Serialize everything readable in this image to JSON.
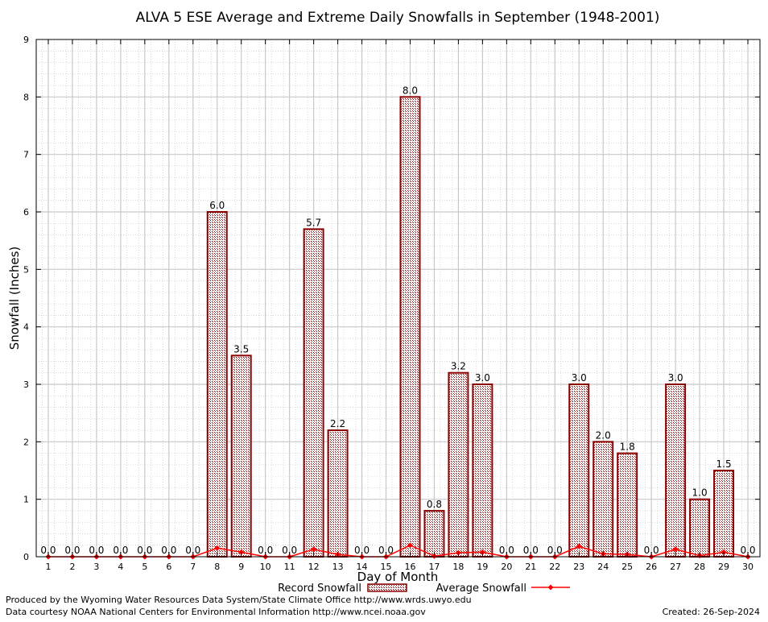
{
  "chart_data": {
    "type": "bar",
    "title": "ALVA 5 ESE Average and Extreme Daily Snowfalls in September (1948-2001)",
    "xlabel": "Day of Month",
    "ylabel": "Snowfall (Inches)",
    "ylim": [
      0,
      9
    ],
    "yticks": [
      "0",
      "1",
      "2",
      "3",
      "4",
      "5",
      "6",
      "7",
      "8",
      "9"
    ],
    "grid": true,
    "legend_position": "bottom",
    "categories": [
      "1",
      "2",
      "3",
      "4",
      "5",
      "6",
      "7",
      "8",
      "9",
      "10",
      "11",
      "12",
      "13",
      "14",
      "15",
      "16",
      "17",
      "18",
      "19",
      "20",
      "21",
      "22",
      "23",
      "24",
      "25",
      "26",
      "27",
      "28",
      "29",
      "30"
    ],
    "series": [
      {
        "name": "Record Snowfall",
        "kind": "bar",
        "color": "#8b0000",
        "values": [
          0,
          0,
          0,
          0,
          0,
          0,
          0,
          6.0,
          3.5,
          0,
          0,
          5.7,
          2.2,
          0,
          0,
          8.0,
          0.8,
          3.2,
          3.0,
          0,
          0,
          0,
          3.0,
          2.0,
          1.8,
          0,
          3.0,
          1.0,
          1.5,
          0
        ],
        "labels": [
          "0.0",
          "0.0",
          "0.0",
          "0.0",
          "0.0",
          "0.0",
          "0.0",
          "6.0",
          "3.5",
          "0.0",
          "0.0",
          "5.7",
          "2.2",
          "0.0",
          "0.0",
          "8.0",
          "0.8",
          "3.2",
          "3.0",
          "0.0",
          "0.0",
          "0.0",
          "3.0",
          "2.0",
          "1.8",
          "0.0",
          "3.0",
          "1.0",
          "1.5",
          "0.0"
        ]
      },
      {
        "name": "Average Snowfall",
        "kind": "line",
        "color": "#ff0000",
        "values": [
          0,
          0,
          0,
          0,
          0,
          0,
          0,
          0.15,
          0.08,
          0,
          0,
          0.13,
          0.04,
          0,
          0,
          0.2,
          0.01,
          0.07,
          0.08,
          0,
          0,
          0,
          0.18,
          0.05,
          0.04,
          0,
          0.13,
          0.02,
          0.08,
          0
        ]
      }
    ]
  },
  "footer": {
    "produced_by": "Produced by the Wyoming Water Resources Data System/State Climate Office http://www.wrds.uwyo.edu",
    "courtesy": "Data courtesy NOAA National Centers for Environmental Information http://www.ncei.noaa.gov",
    "created": "Created:  26-Sep-2024"
  }
}
